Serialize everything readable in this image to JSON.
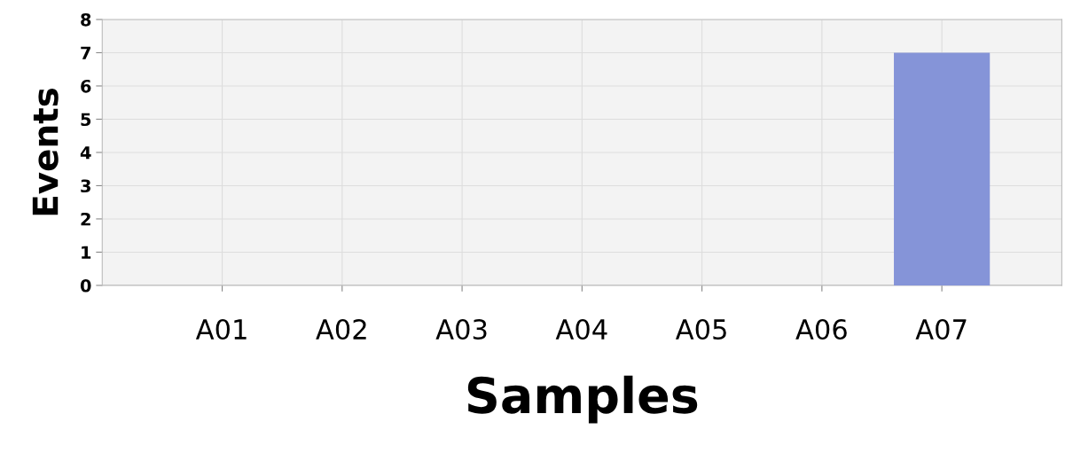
{
  "chart_data": {
    "type": "bar",
    "xlabel": "Samples",
    "ylabel": "Events",
    "categories": [
      "A01",
      "A02",
      "A03",
      "A04",
      "A05",
      "A06",
      "A07"
    ],
    "values": [
      0,
      0,
      0,
      0,
      0,
      0,
      7
    ],
    "color": "#8594d8",
    "ylim": [
      0,
      8
    ],
    "yticks": [
      0,
      1,
      2,
      3,
      4,
      5,
      6,
      7,
      8
    ],
    "grid": true
  }
}
